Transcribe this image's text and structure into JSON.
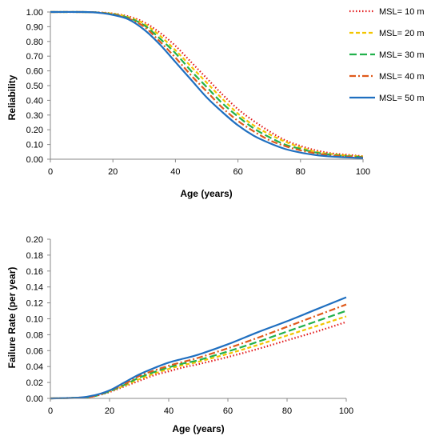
{
  "chart_data": [
    {
      "type": "line",
      "title": "",
      "xlabel": "Age (years)",
      "ylabel": "Reliability",
      "xlim": [
        0,
        100
      ],
      "ylim": [
        0,
        1
      ],
      "xticks": [
        "0",
        "20",
        "40",
        "60",
        "80",
        "100"
      ],
      "yticks": [
        "0.00",
        "0.10",
        "0.20",
        "0.30",
        "0.40",
        "0.50",
        "0.60",
        "0.70",
        "0.80",
        "0.90",
        "1.00"
      ],
      "grid": false,
      "legend_position": "top-right",
      "x": [
        0,
        10,
        15,
        20,
        25,
        30,
        35,
        40,
        45,
        50,
        55,
        60,
        65,
        70,
        75,
        80,
        85,
        90,
        95,
        100
      ],
      "series": [
        {
          "name": "MSL= 10 m",
          "color": "#e31a1c",
          "dash": "dotted",
          "values": [
            1.0,
            1.0,
            0.998,
            0.99,
            0.97,
            0.93,
            0.86,
            0.77,
            0.66,
            0.55,
            0.44,
            0.34,
            0.26,
            0.19,
            0.13,
            0.09,
            0.06,
            0.04,
            0.03,
            0.02
          ]
        },
        {
          "name": "MSL= 20 m",
          "color": "#f2c500",
          "dash": "dashed",
          "values": [
            1.0,
            1.0,
            0.997,
            0.988,
            0.965,
            0.92,
            0.84,
            0.74,
            0.63,
            0.52,
            0.41,
            0.31,
            0.23,
            0.17,
            0.12,
            0.08,
            0.05,
            0.035,
            0.025,
            0.018
          ]
        },
        {
          "name": "MSL= 30 m",
          "color": "#22b14c",
          "dash": "longdash",
          "values": [
            1.0,
            1.0,
            0.997,
            0.985,
            0.96,
            0.91,
            0.82,
            0.72,
            0.6,
            0.49,
            0.38,
            0.29,
            0.21,
            0.15,
            0.1,
            0.07,
            0.045,
            0.03,
            0.02,
            0.015
          ]
        },
        {
          "name": "MSL= 40 m",
          "color": "#e05a1b",
          "dash": "dashdot",
          "values": [
            1.0,
            1.0,
            0.996,
            0.983,
            0.955,
            0.9,
            0.8,
            0.69,
            0.57,
            0.46,
            0.35,
            0.26,
            0.19,
            0.13,
            0.09,
            0.06,
            0.04,
            0.025,
            0.017,
            0.012
          ]
        },
        {
          "name": "MSL= 50 m",
          "color": "#1f6fc0",
          "dash": "solid",
          "values": [
            1.0,
            1.0,
            0.996,
            0.98,
            0.95,
            0.88,
            0.78,
            0.66,
            0.54,
            0.42,
            0.32,
            0.23,
            0.16,
            0.11,
            0.07,
            0.045,
            0.028,
            0.018,
            0.012,
            0.008
          ]
        }
      ]
    },
    {
      "type": "line",
      "title": "",
      "xlabel": "Age (years)",
      "ylabel": "Failure Rate (per year)",
      "xlim": [
        0,
        100
      ],
      "ylim": [
        0,
        0.2
      ],
      "xticks": [
        "0",
        "20",
        "40",
        "60",
        "80",
        "100"
      ],
      "yticks": [
        "0.00",
        "0.02",
        "0.04",
        "0.06",
        "0.08",
        "0.10",
        "0.12",
        "0.14",
        "0.16",
        "0.18",
        "0.20"
      ],
      "grid": false,
      "x": [
        0,
        10,
        15,
        20,
        25,
        30,
        35,
        40,
        45,
        50,
        60,
        70,
        80,
        90,
        100
      ],
      "series": [
        {
          "name": "MSL= 10 m",
          "color": "#e31a1c",
          "dash": "dotted",
          "values": [
            0,
            0.001,
            0.003,
            0.008,
            0.015,
            0.022,
            0.029,
            0.034,
            0.039,
            0.043,
            0.052,
            0.062,
            0.073,
            0.084,
            0.096
          ]
        },
        {
          "name": "MSL= 20 m",
          "color": "#f2c500",
          "dash": "dashed",
          "values": [
            0,
            0.001,
            0.003,
            0.009,
            0.016,
            0.024,
            0.031,
            0.037,
            0.042,
            0.046,
            0.056,
            0.067,
            0.079,
            0.091,
            0.103
          ]
        },
        {
          "name": "MSL= 30 m",
          "color": "#22b14c",
          "dash": "longdash",
          "values": [
            0,
            0.001,
            0.003,
            0.009,
            0.017,
            0.026,
            0.033,
            0.039,
            0.044,
            0.048,
            0.059,
            0.071,
            0.084,
            0.097,
            0.11
          ]
        },
        {
          "name": "MSL= 40 m",
          "color": "#e05a1b",
          "dash": "dashdot",
          "values": [
            0,
            0.001,
            0.003,
            0.01,
            0.018,
            0.028,
            0.035,
            0.041,
            0.046,
            0.051,
            0.063,
            0.076,
            0.09,
            0.104,
            0.118
          ]
        },
        {
          "name": "MSL= 50 m",
          "color": "#1f6fc0",
          "dash": "solid",
          "values": [
            0,
            0.001,
            0.004,
            0.01,
            0.02,
            0.03,
            0.038,
            0.045,
            0.05,
            0.055,
            0.068,
            0.083,
            0.097,
            0.112,
            0.127
          ]
        }
      ]
    }
  ]
}
